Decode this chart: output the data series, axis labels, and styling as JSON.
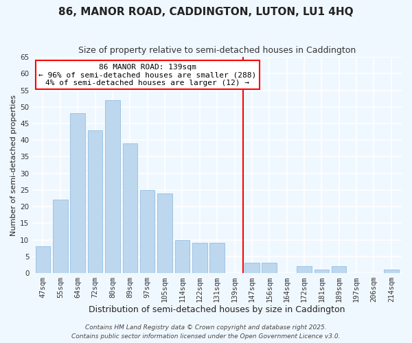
{
  "title": "86, MANOR ROAD, CADDINGTON, LUTON, LU1 4HQ",
  "subtitle": "Size of property relative to semi-detached houses in Caddington",
  "xlabel": "Distribution of semi-detached houses by size in Caddington",
  "ylabel": "Number of semi-detached properties",
  "bar_labels": [
    "47sqm",
    "55sqm",
    "64sqm",
    "72sqm",
    "80sqm",
    "89sqm",
    "97sqm",
    "105sqm",
    "114sqm",
    "122sqm",
    "131sqm",
    "139sqm",
    "147sqm",
    "156sqm",
    "164sqm",
    "172sqm",
    "181sqm",
    "189sqm",
    "197sqm",
    "206sqm",
    "214sqm"
  ],
  "bar_values": [
    8,
    22,
    48,
    43,
    52,
    39,
    25,
    24,
    10,
    9,
    9,
    0,
    3,
    3,
    0,
    2,
    1,
    2,
    0,
    0,
    1
  ],
  "bar_color": "#bdd7ee",
  "bar_edge_color": "#9dc3e6",
  "vline_index": 11,
  "vline_color": "red",
  "annotation_line1": "86 MANOR ROAD: 139sqm",
  "annotation_line2": "← 96% of semi-detached houses are smaller (288)",
  "annotation_line3": "4% of semi-detached houses are larger (12) →",
  "ylim": [
    0,
    65
  ],
  "yticks": [
    0,
    5,
    10,
    15,
    20,
    25,
    30,
    35,
    40,
    45,
    50,
    55,
    60,
    65
  ],
  "footer1": "Contains HM Land Registry data © Crown copyright and database right 2025.",
  "footer2": "Contains public sector information licensed under the Open Government Licence v3.0.",
  "bg_color": "#f0f8ff",
  "grid_color": "#d0e8f8",
  "title_fontsize": 11,
  "subtitle_fontsize": 9,
  "xlabel_fontsize": 9,
  "ylabel_fontsize": 8,
  "tick_fontsize": 7.5,
  "annotation_fontsize": 8,
  "footer_fontsize": 6.5
}
